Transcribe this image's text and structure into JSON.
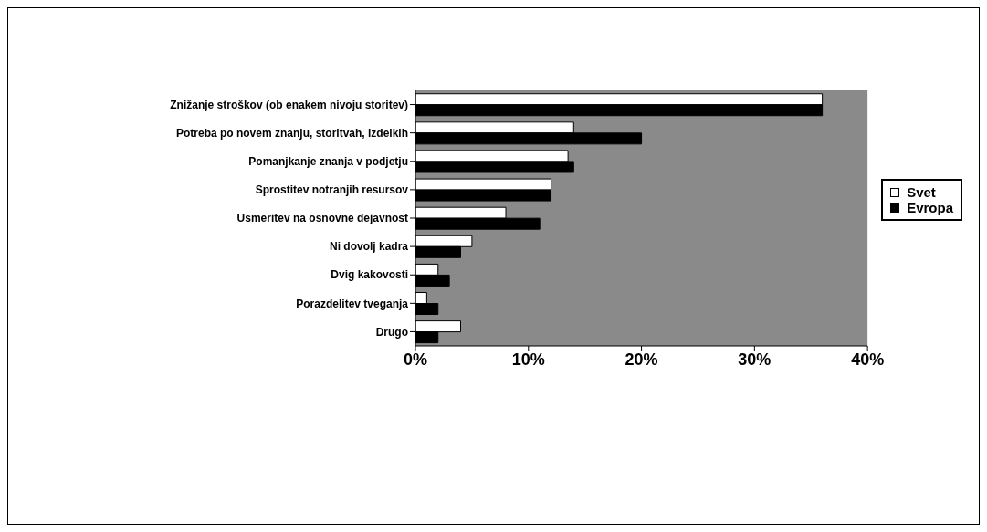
{
  "chart_data": {
    "type": "bar",
    "orientation": "horizontal",
    "categories": [
      "Znižanje stroškov (ob enakem nivoju storitev)",
      "Potreba po novem znanju, storitvah, izdelkih",
      "Pomanjkanje znanja v podjetju",
      "Sprostitev notranjih resursov",
      "Usmeritev na osnovne dejavnost",
      "Ni dovolj kadra",
      "Dvig kakovosti",
      "Porazdelitev tveganja",
      "Drugo"
    ],
    "series": [
      {
        "name": "Svet",
        "color": "#ffffff",
        "values": [
          36,
          14,
          13.5,
          12,
          8,
          5,
          2,
          1,
          4
        ]
      },
      {
        "name": "Evropa",
        "color": "#000000",
        "values": [
          36,
          20,
          14,
          12,
          11,
          4,
          3,
          2,
          2
        ]
      }
    ],
    "xlim": [
      0,
      40
    ],
    "xticks": [
      {
        "value": 0,
        "label": "0%"
      },
      {
        "value": 10,
        "label": "10%"
      },
      {
        "value": 20,
        "label": "20%"
      },
      {
        "value": 30,
        "label": "30%"
      },
      {
        "value": 40,
        "label": "40%"
      }
    ],
    "grid": false,
    "legend": "right"
  }
}
